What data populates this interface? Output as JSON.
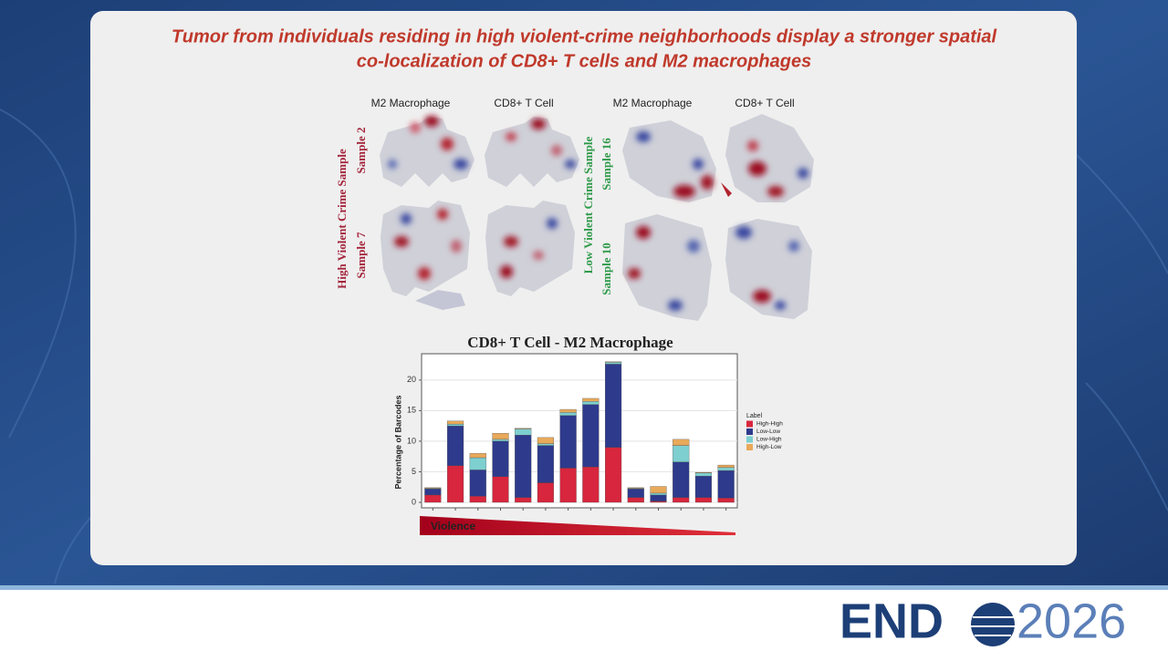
{
  "slide": {
    "title_line1": "Tumor from individuals residing in high violent-crime neighborhoods display a stronger spatial",
    "title_line2": "co-localization of CD8+ T cells and M2 macrophages"
  },
  "maps": {
    "column_headers": [
      "M2 Macrophage",
      "CD8+ T Cell",
      "M2 Macrophage",
      "CD8+ T Cell"
    ],
    "groups": [
      {
        "label": "High Violent Crime Sample",
        "samples": [
          "Sample 2",
          "Sample 7"
        ]
      },
      {
        "label": "Low Violent Crime Sample",
        "samples": [
          "Sample 16",
          "Sample 10"
        ]
      }
    ]
  },
  "chart_data": {
    "type": "stacked-bar",
    "title": "CD8+ T Cell - M2 Macrophage",
    "y_label": "Percentage of Barcodes",
    "legend_title": "Label",
    "categories": [
      null,
      null,
      null,
      null,
      null,
      null,
      null,
      null,
      null,
      null,
      null,
      null,
      null,
      null
    ],
    "series": [
      {
        "name": "High-High",
        "color": "#d7263d",
        "values": [
          1.2,
          6.0,
          1.0,
          4.2,
          0.8,
          3.2,
          5.6,
          5.8,
          9.0,
          0.8,
          0.2,
          0.8,
          0.8,
          0.7
        ]
      },
      {
        "name": "Low-Low",
        "color": "#2e3a8c",
        "values": [
          1.0,
          6.5,
          4.3,
          5.8,
          10.2,
          6.1,
          8.6,
          10.2,
          13.6,
          1.4,
          1.0,
          5.8,
          3.5,
          4.5
        ]
      },
      {
        "name": "Low-High",
        "color": "#7ecfd0",
        "values": [
          0.1,
          0.3,
          2.0,
          0.3,
          1.0,
          0.3,
          0.5,
          0.5,
          0.3,
          0.1,
          0.3,
          2.7,
          0.5,
          0.5
        ]
      },
      {
        "name": "High-Low",
        "color": "#e8a95a",
        "values": [
          0.1,
          0.5,
          0.7,
          1.0,
          0.1,
          1.0,
          0.5,
          0.5,
          0.1,
          0.1,
          1.1,
          1.0,
          0.1,
          0.4
        ]
      }
    ],
    "ylim": [
      -0.9,
      24.3
    ],
    "yticks": [
      0,
      5,
      10,
      15,
      20
    ],
    "grid": true,
    "legend": "right",
    "annotation": "Violence"
  },
  "footer": {
    "logo_left": "END",
    "logo_right": "2026"
  }
}
